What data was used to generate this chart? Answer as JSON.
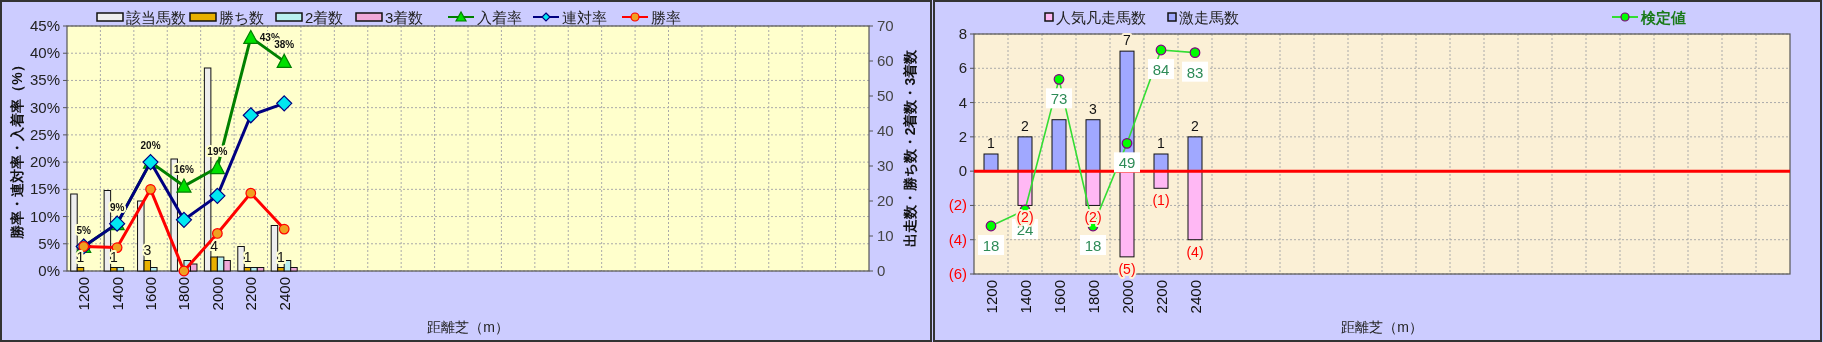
{
  "chart_data": [
    {
      "type": "bar",
      "xlabel": "距離芝（m）",
      "ylabel": "勝率・連対率・入着率（%）",
      "y2label": "出走数・勝ち数・2着数・3着数",
      "grid": true,
      "legend": "top",
      "categories": [
        "1200",
        "1400",
        "1600",
        "1800",
        "2000",
        "2200",
        "2400",
        null,
        null,
        null,
        null,
        null,
        null,
        null,
        null,
        null,
        null,
        null,
        null,
        null,
        null,
        null,
        null,
        null
      ],
      "ylim": [
        0,
        45
      ],
      "yticks": [
        {
          "value": 0,
          "label": "0%"
        },
        {
          "value": 5,
          "label": "5%"
        },
        {
          "value": 10,
          "label": "10%"
        },
        {
          "value": 15,
          "label": "15%"
        },
        {
          "value": 20,
          "label": "20%"
        },
        {
          "value": 25,
          "label": "25%"
        },
        {
          "value": 30,
          "label": "30%"
        },
        {
          "value": 35,
          "label": "35%"
        },
        {
          "value": 40,
          "label": "40%"
        },
        {
          "value": 45,
          "label": "45%"
        }
      ],
      "y2lim": [
        0,
        70
      ],
      "y2ticks": [
        0,
        10,
        20,
        30,
        40,
        50,
        60,
        70
      ],
      "series": [
        {
          "name": "該当馬数",
          "type": "bar",
          "axis": "y2",
          "color": "#eeeeee",
          "values": [
            22,
            23,
            20,
            32,
            58,
            7,
            13,
            null,
            null,
            null,
            null,
            null,
            null,
            null,
            null,
            null,
            null,
            null,
            null,
            null,
            null,
            null,
            null,
            null
          ]
        },
        {
          "name": "勝ち数",
          "type": "bar",
          "axis": "y2",
          "color": "#e8b000",
          "values": [
            1,
            1,
            3,
            0,
            4,
            1,
            1,
            null,
            null,
            null,
            null,
            null,
            null,
            null,
            null,
            null,
            null,
            null,
            null,
            null,
            null,
            null,
            null,
            null
          ],
          "value_labels": [
            "1",
            "1",
            "3",
            null,
            "4",
            "1",
            "1",
            null,
            null,
            null,
            null,
            null,
            null,
            null,
            null,
            null,
            null,
            null,
            null,
            null,
            null,
            null,
            null,
            null
          ]
        },
        {
          "name": "2着数",
          "type": "bar",
          "axis": "y2",
          "color": "#b8f0f0",
          "values": [
            0,
            1,
            1,
            3,
            4,
            1,
            3,
            null,
            null,
            null,
            null,
            null,
            null,
            null,
            null,
            null,
            null,
            null,
            null,
            null,
            null,
            null,
            null,
            null
          ]
        },
        {
          "name": "3着数",
          "type": "bar",
          "axis": "y2",
          "color": "#f0a8d8",
          "values": [
            0,
            0,
            0,
            2,
            3,
            1,
            1,
            null,
            null,
            null,
            null,
            null,
            null,
            null,
            null,
            null,
            null,
            null,
            null,
            null,
            null,
            null,
            null,
            null
          ]
        },
        {
          "name": "入着率",
          "type": "line",
          "color": "#008000",
          "marker": "triangle",
          "colors": [
            "#00e000",
            "#00e000",
            "#00e000",
            "#00e000",
            "#00e000",
            "#00e000",
            "#00e000",
            null,
            null,
            null,
            null,
            null,
            null,
            null,
            null,
            null,
            null,
            null,
            null,
            null,
            null,
            null,
            null,
            null
          ],
          "values": [
            4.5,
            8.7,
            20,
            15.6,
            19,
            42.9,
            38.5,
            null,
            null,
            null,
            null,
            null,
            null,
            null,
            null,
            null,
            null,
            null,
            null,
            null,
            null,
            null,
            null,
            null
          ],
          "value_labels": [
            "5%",
            "9%",
            "20%",
            "16%",
            "19%",
            "43%",
            "38%",
            null,
            null,
            null,
            null,
            null,
            null,
            null,
            null,
            null,
            null,
            null,
            null,
            null,
            null,
            null,
            null,
            null
          ]
        },
        {
          "name": "連対率",
          "type": "line",
          "color": "#000080",
          "marker": "diamond",
          "colors": [
            "#00e8f0",
            "#00e8f0",
            "#00e8f0",
            "#00e8f0",
            "#00e8f0",
            "#00e8f0",
            "#00e8f0",
            null,
            null,
            null,
            null,
            null,
            null,
            null,
            null,
            null,
            null,
            null,
            null,
            null,
            null,
            null,
            null,
            null
          ],
          "values": [
            4.5,
            8.7,
            20,
            9.4,
            13.8,
            28.6,
            30.8,
            null,
            null,
            null,
            null,
            null,
            null,
            null,
            null,
            null,
            null,
            null,
            null,
            null,
            null,
            null,
            null,
            null
          ]
        },
        {
          "name": "勝率",
          "type": "line",
          "color": "#ff0000",
          "marker": "circle",
          "colors": [
            "#f0a020",
            "#f0a020",
            "#f0a020",
            "#f0a020",
            "#f0a020",
            "#f0a020",
            "#f0a020",
            null,
            null,
            null,
            null,
            null,
            null,
            null,
            null,
            null,
            null,
            null,
            null,
            null,
            null,
            null,
            null,
            null
          ],
          "values": [
            4.5,
            4.3,
            15,
            0,
            6.9,
            14.3,
            7.7,
            null,
            null,
            null,
            null,
            null,
            null,
            null,
            null,
            null,
            null,
            null,
            null,
            null,
            null,
            null,
            null,
            null
          ]
        }
      ]
    },
    {
      "type": "bar",
      "xlabel": "距離芝（m）",
      "grid": true,
      "legend": "top",
      "stacked": true,
      "categories": [
        "1200",
        "1400",
        "1600",
        "1800",
        "2000",
        "2200",
        "2400",
        null,
        null,
        null,
        null,
        null,
        null,
        null,
        null,
        null,
        null,
        null,
        null,
        null,
        null,
        null,
        null,
        null
      ],
      "ylim": [
        -6,
        8
      ],
      "yticks": [
        {
          "value": -6,
          "label": "(6)"
        },
        {
          "value": -4,
          "label": "(4)"
        },
        {
          "value": -2,
          "label": "(2)"
        },
        0,
        2,
        4,
        6,
        8
      ],
      "y2lim": [
        0,
        90
      ],
      "ref_lines": [
        {
          "axis": "y",
          "value": 0,
          "color": "#ff0000"
        }
      ],
      "series": [
        {
          "name": "人気凡走馬数",
          "type": "bar",
          "color": "#ffb8f4",
          "values": [
            0,
            -2,
            0,
            -2,
            -5,
            -1,
            -4,
            null,
            null,
            null,
            null,
            null,
            null,
            null,
            null,
            null,
            null,
            null,
            null,
            null,
            null,
            null,
            null,
            null
          ],
          "value_labels": [
            null,
            "(2)",
            null,
            "(2)",
            "(5)",
            "(1)",
            "(4)",
            null,
            null,
            null,
            null,
            null,
            null,
            null,
            null,
            null,
            null,
            null,
            null,
            null,
            null,
            null,
            null,
            null
          ]
        },
        {
          "name": "激走馬数",
          "type": "bar",
          "color": "#a0a8ff",
          "values": [
            1,
            2,
            3,
            3,
            7,
            1,
            2,
            null,
            null,
            null,
            null,
            null,
            null,
            null,
            null,
            null,
            null,
            null,
            null,
            null,
            null,
            null,
            null,
            null
          ],
          "value_labels": [
            "1",
            "2",
            null,
            "3",
            "7",
            "1",
            "2",
            null,
            null,
            null,
            null,
            null,
            null,
            null,
            null,
            null,
            null,
            null,
            null,
            null,
            null,
            null,
            null,
            null
          ]
        },
        {
          "name": "検定値",
          "type": "line",
          "axis": "y2",
          "color": "#33dd33",
          "marker": "circle",
          "colors": [
            "#00ff00",
            "#00ff00",
            "#00ff00",
            "#00ff00",
            "#00ff00",
            "#00ff00",
            "#00ff00",
            null,
            null,
            null,
            null,
            null,
            null,
            null,
            null,
            null,
            null,
            null,
            null,
            null,
            null,
            null,
            null,
            null
          ],
          "values": [
            18,
            24,
            73,
            18,
            49,
            84,
            83,
            null,
            null,
            null,
            null,
            null,
            null,
            null,
            null,
            null,
            null,
            null,
            null,
            null,
            null,
            null,
            null,
            null
          ],
          "value_labels": [
            "18",
            "24",
            "73",
            "18",
            "49",
            "84",
            "83",
            null,
            null,
            null,
            null,
            null,
            null,
            null,
            null,
            null,
            null,
            null,
            null,
            null,
            null,
            null,
            null,
            null
          ]
        }
      ]
    }
  ]
}
